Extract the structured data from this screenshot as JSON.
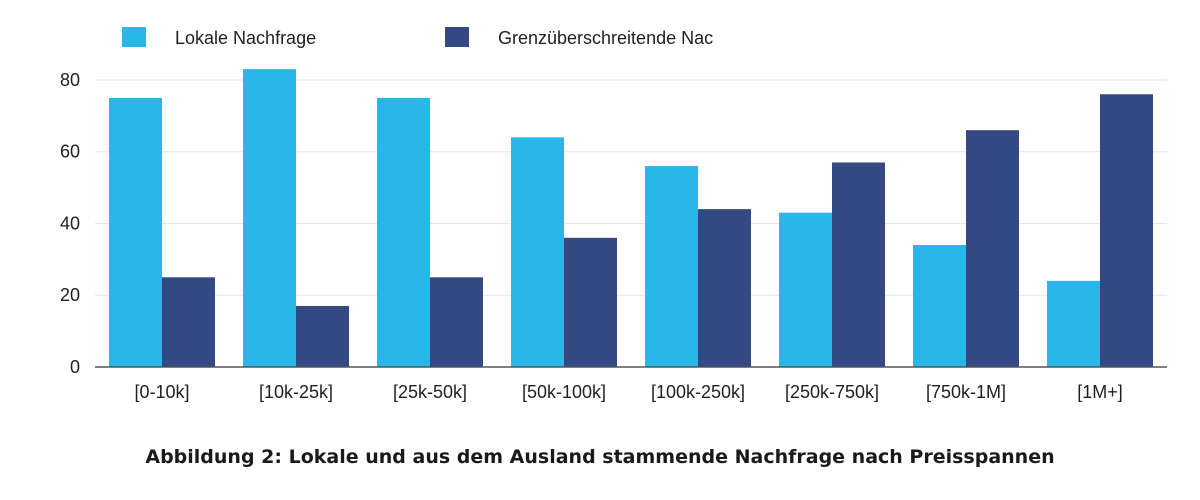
{
  "caption": "Abbildung 2: Lokale und aus dem Ausland stammende Nachfrage nach Preisspannen",
  "chart_data": {
    "type": "bar",
    "categories": [
      "[0-10k]",
      "[10k-25k]",
      "[25k-50k]",
      "[50k-100k]",
      "[100k-250k]",
      "[250k-750k]",
      "[750k-1M]",
      "[1M+]"
    ],
    "series": [
      {
        "name": "Lokale Nachfrage",
        "color": "#29b6e9",
        "values": [
          75,
          83,
          75,
          64,
          56,
          43,
          34,
          24
        ]
      },
      {
        "name": "Grenzüberschreitende Nac",
        "color": "#344883",
        "values": [
          25,
          17,
          25,
          36,
          44,
          57,
          66,
          76
        ]
      }
    ],
    "y_ticks": [
      0,
      20,
      40,
      60,
      80
    ],
    "ylim": [
      0,
      85
    ],
    "grid": true,
    "legend_position": "top-left",
    "title": "",
    "xlabel": "",
    "ylabel": ""
  }
}
